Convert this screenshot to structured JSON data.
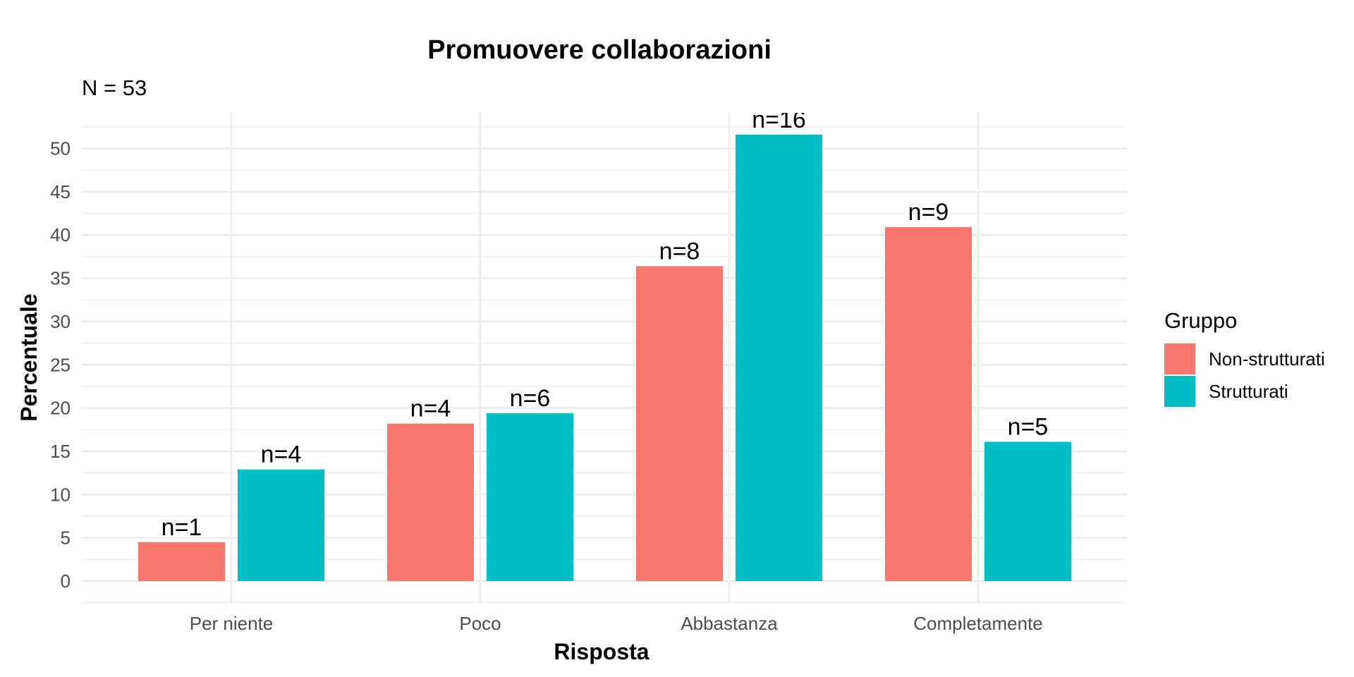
{
  "chart_data": {
    "type": "bar",
    "title": "Promuovere collaborazioni",
    "subtitle": "N = 53",
    "xlabel": "Risposta",
    "ylabel": "Percentuale",
    "categories": [
      "Per niente",
      "Poco",
      "Abbastanza",
      "Completamente"
    ],
    "ylim": [
      0,
      52.5
    ],
    "yticks": [
      0,
      5,
      10,
      15,
      20,
      25,
      30,
      35,
      40,
      45,
      50
    ],
    "grid": true,
    "legend": {
      "title": "Gruppo",
      "position": "right"
    },
    "series": [
      {
        "name": "Non-strutturati",
        "color": "#F8766D",
        "values": [
          4.5,
          18.2,
          36.4,
          40.9
        ],
        "labels": [
          "n=1",
          "n=4",
          "n=8",
          "n=9"
        ]
      },
      {
        "name": "Strutturati",
        "color": "#00BFC4",
        "values": [
          12.9,
          19.4,
          51.6,
          16.1
        ],
        "labels": [
          "n=4",
          "n=6",
          "n=16",
          "n=5"
        ]
      }
    ]
  }
}
